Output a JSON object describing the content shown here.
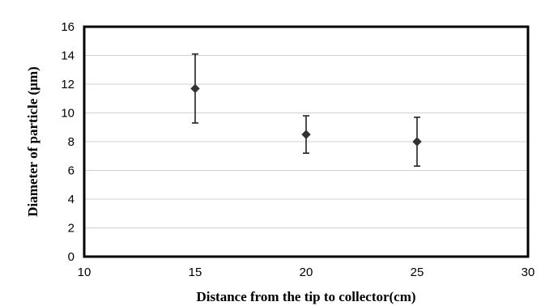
{
  "chart_data": {
    "type": "scatter",
    "xlabel": "Distance from the tip to collector(cm)",
    "ylabel": "Diameter of particle (µm)",
    "xlim": [
      10,
      30
    ],
    "ylim": [
      0,
      16
    ],
    "x_ticks": [
      "10",
      "15",
      "20",
      "25",
      "30"
    ],
    "y_ticks": [
      "0",
      "2",
      "4",
      "6",
      "8",
      "10",
      "12",
      "14",
      "16"
    ],
    "grid": "horizontal",
    "series": [
      {
        "x": [
          15,
          20,
          25
        ],
        "y": [
          11.7,
          8.5,
          8.0
        ],
        "error": [
          2.4,
          1.3,
          1.7
        ]
      }
    ],
    "colors": {
      "marker": "#333333",
      "error_bar": "#222222",
      "frame": "#000000",
      "grid": "#d0d0d0"
    }
  }
}
